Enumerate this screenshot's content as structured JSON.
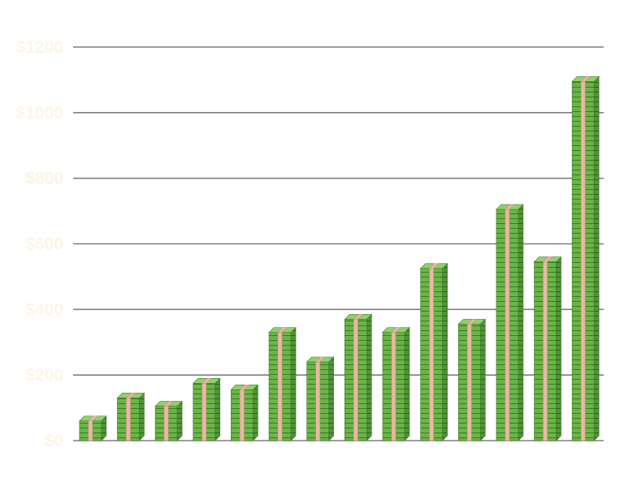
{
  "chart_data": {
    "type": "bar",
    "title": "",
    "xlabel": "",
    "ylabel": "",
    "ylim": [
      0,
      1200
    ],
    "yticks": [
      0,
      200,
      400,
      600,
      800,
      1000,
      1200
    ],
    "ytick_labels": [
      "$0",
      "$200",
      "$400",
      "$600",
      "$800",
      "$1000",
      "$1200"
    ],
    "grid": true,
    "legend": "none",
    "values": [
      60,
      130,
      105,
      175,
      155,
      330,
      240,
      370,
      330,
      525,
      355,
      705,
      545,
      1095
    ],
    "colors": {
      "bill_front": "#6ab546",
      "bill_side": "#4f9535",
      "bill_top": "#8fd06a",
      "bill_line": "#3d7a2a",
      "band": "#e9b8a6",
      "band_edge": "#c98f7b",
      "gridline": "#7f7f7f",
      "tick_label": "#fdf5e4"
    }
  }
}
